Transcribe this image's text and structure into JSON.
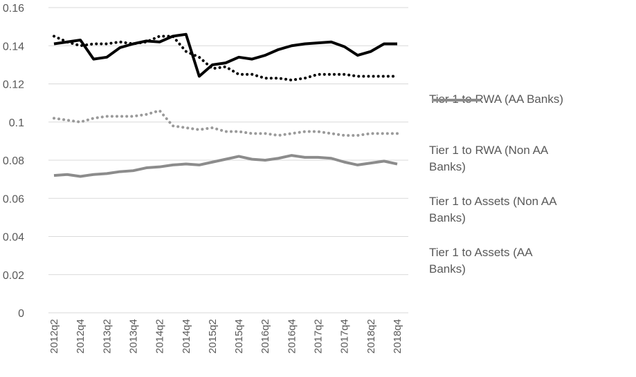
{
  "chart_data": {
    "type": "line",
    "categories": [
      "2012q2",
      null,
      "2012q4",
      null,
      "2013q2",
      null,
      "2013q4",
      null,
      "2014q2",
      null,
      "2014q4",
      null,
      "2015q2",
      null,
      "2015q4",
      null,
      "2016q2",
      null,
      "2016q4",
      null,
      "2017q2",
      null,
      "2017q4",
      null,
      "2018q2",
      null,
      "2018q4"
    ],
    "ylim": [
      0,
      0.16
    ],
    "yticks": [
      0,
      0.02,
      0.04,
      0.06,
      0.08,
      0.1,
      0.12,
      0.14,
      0.16
    ],
    "grid": true,
    "legend": "right",
    "series": [
      {
        "name": "Tier 1 to RWA (AA Banks)",
        "color": "#000000",
        "line_style": "solid",
        "values": [
          0.141,
          0.142,
          0.143,
          0.133,
          0.134,
          0.139,
          0.141,
          0.1425,
          0.142,
          0.145,
          0.146,
          0.124,
          0.13,
          0.131,
          0.134,
          0.133,
          0.135,
          0.138,
          0.14,
          0.141,
          0.1415,
          0.142,
          0.1395,
          0.135,
          0.137,
          0.141,
          0.141
        ]
      },
      {
        "name": "Tier 1 to RWA (Non AA Banks)",
        "color": "#000000",
        "line_style": "dotted",
        "values": [
          0.145,
          0.142,
          0.14,
          0.141,
          0.141,
          0.142,
          0.141,
          0.142,
          0.145,
          0.145,
          0.137,
          0.134,
          0.128,
          0.129,
          0.125,
          0.125,
          0.123,
          0.123,
          0.122,
          0.123,
          0.125,
          0.125,
          0.125,
          0.124,
          0.124,
          0.124,
          0.124
        ]
      },
      {
        "name": "Tier 1 to Assets (Non AA Banks)",
        "color": "#9a9a9a",
        "line_style": "dotted",
        "values": [
          0.102,
          0.101,
          0.1,
          0.102,
          0.103,
          0.103,
          0.103,
          0.104,
          0.106,
          0.098,
          0.097,
          0.096,
          0.097,
          0.095,
          0.095,
          0.094,
          0.094,
          0.093,
          0.094,
          0.095,
          0.095,
          0.094,
          0.093,
          0.093,
          0.094,
          0.094,
          0.094
        ]
      },
      {
        "name": "Tier 1 to Assets (AA Banks)",
        "color": "#8c8c8c",
        "line_style": "solid",
        "values": [
          0.072,
          0.0725,
          0.0715,
          0.0725,
          0.073,
          0.074,
          0.0745,
          0.076,
          0.0765,
          0.0775,
          0.078,
          0.0775,
          0.079,
          0.0805,
          0.082,
          0.0805,
          0.08,
          0.081,
          0.0825,
          0.0815,
          0.0815,
          0.081,
          0.079,
          0.0775,
          0.0785,
          0.0795,
          0.078
        ]
      }
    ]
  }
}
